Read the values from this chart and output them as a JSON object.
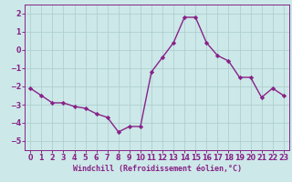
{
  "x": [
    0,
    1,
    2,
    3,
    4,
    5,
    6,
    7,
    8,
    9,
    10,
    11,
    12,
    13,
    14,
    15,
    16,
    17,
    18,
    19,
    20,
    21,
    22,
    23
  ],
  "y": [
    -2.1,
    -2.5,
    -2.9,
    -2.9,
    -3.1,
    -3.2,
    -3.5,
    -3.7,
    -4.5,
    -4.2,
    -4.2,
    -1.2,
    -0.4,
    0.4,
    1.8,
    1.8,
    0.4,
    -0.3,
    -0.6,
    -1.5,
    -1.5,
    -2.6,
    -2.1,
    -2.5
  ],
  "line_color": "#882288",
  "marker": "D",
  "marker_size": 2.2,
  "background_color": "#cce8e8",
  "grid_color": "#aacccc",
  "xlabel": "Windchill (Refroidissement éolien,°C)",
  "xlabel_fontsize": 6.0,
  "tick_fontsize": 5.8,
  "xlim": [
    -0.5,
    23.5
  ],
  "ylim": [
    -5.5,
    2.5
  ],
  "yticks": [
    -5,
    -4,
    -3,
    -2,
    -1,
    0,
    1,
    2
  ],
  "xticks": [
    0,
    1,
    2,
    3,
    4,
    5,
    6,
    7,
    8,
    9,
    10,
    11,
    12,
    13,
    14,
    15,
    16,
    17,
    18,
    19,
    20,
    21,
    22,
    23
  ],
  "line_width": 1.0
}
